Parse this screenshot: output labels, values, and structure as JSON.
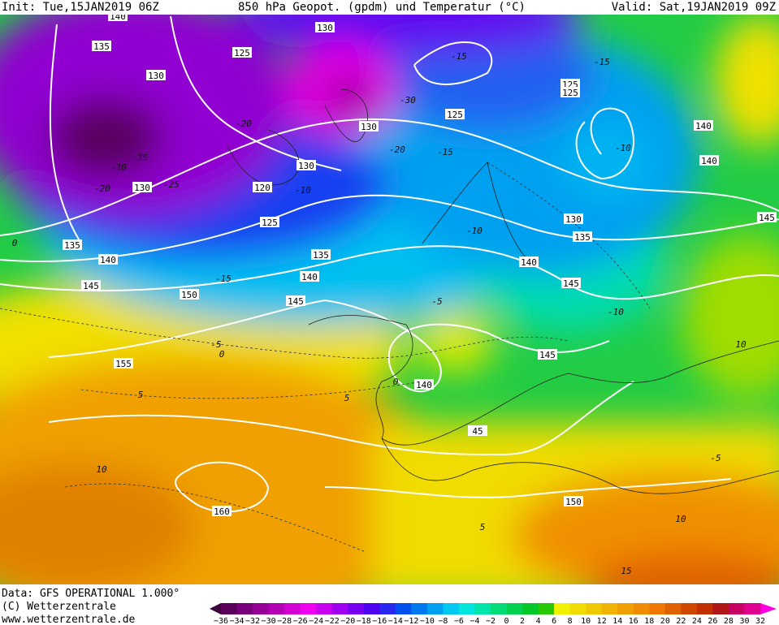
{
  "header": {
    "init": "Init: Tue,15JAN2019 06Z",
    "title": "850 hPa Geopot. (gpdm) und Temperatur (°C)",
    "valid": "Valid: Sat,19JAN2019 09Z"
  },
  "footer": {
    "data": "Data: GFS OPERATIONAL 1.000°",
    "copyright": "(C) Wetterzentrale",
    "url": "www.wetterzentrale.de"
  },
  "geopotential_labels": [
    "140",
    "130",
    "135",
    "125",
    "130",
    "125",
    "125",
    "125",
    "130",
    "140",
    "140",
    "130",
    "120",
    "130",
    "125",
    "130",
    "145",
    "135",
    "135",
    "140",
    "135",
    "140",
    "140",
    "145",
    "145",
    "150",
    "145",
    "145",
    "155",
    "140",
    "45",
    "150",
    "160"
  ],
  "temperature_labels": [
    "-15",
    "-30",
    "-20",
    "-35",
    "-25",
    "-20",
    "-15",
    "-20",
    "-10",
    "-15",
    "-10",
    "-30",
    "-15",
    "-5",
    "0",
    "0",
    "-5",
    "5",
    "5",
    "10",
    "5",
    "10",
    "15",
    "-10",
    "-5",
    "10",
    "0",
    "-10"
  ],
  "colorbar": {
    "labels": [
      "−36",
      "−34",
      "−32",
      "−30",
      "−28",
      "−26",
      "−24",
      "−22",
      "−20",
      "−18",
      "−16",
      "−14",
      "−12",
      "−10",
      "−8",
      "−6",
      "−4",
      "−2",
      "0",
      "2",
      "4",
      "6",
      "8",
      "10",
      "12",
      "14",
      "16",
      "18",
      "20",
      "22",
      "24",
      "26",
      "28",
      "30",
      "32"
    ],
    "colors": [
      "#5a005a",
      "#780078",
      "#960096",
      "#b400b4",
      "#d200d2",
      "#f000f0",
      "#c800f0",
      "#a000f0",
      "#7800f0",
      "#5000f0",
      "#2828f0",
      "#0050f0",
      "#0078f0",
      "#00a0f0",
      "#00c8f0",
      "#00e6dc",
      "#00e6aa",
      "#00dc78",
      "#00d250",
      "#00c828",
      "#28c800",
      "#f0f000",
      "#f0dc00",
      "#f0c800",
      "#f0b400",
      "#f0a000",
      "#f08c00",
      "#f07800",
      "#e06000",
      "#d04800",
      "#c03000",
      "#b01818",
      "#c80064",
      "#e00090"
    ],
    "low_color": "#3c003c",
    "high_color": "#ff00e0"
  }
}
